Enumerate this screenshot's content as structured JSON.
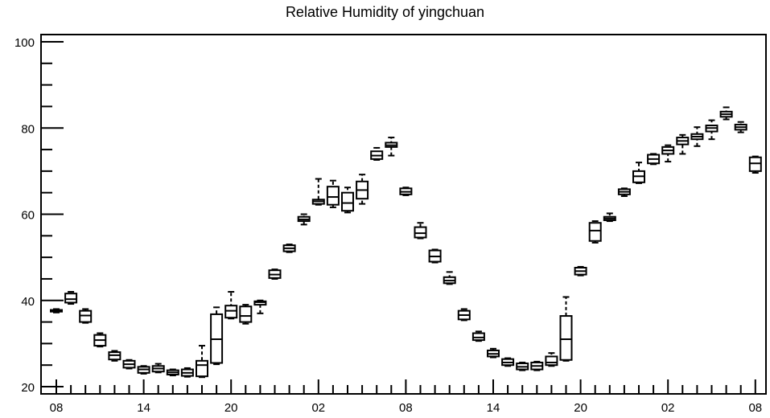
{
  "chart_data": {
    "type": "box",
    "title": "Relative Humidity of yingchuan",
    "xlabel": "",
    "ylabel": "",
    "ylim": [
      20,
      100
    ],
    "y_ticks": [
      20,
      40,
      60,
      80,
      100
    ],
    "x_tick_labels": [
      "08",
      "14",
      "20",
      "02",
      "08",
      "14",
      "20",
      "02",
      "08"
    ],
    "grid": false,
    "hours_per_box": 1,
    "boxes": [
      {
        "x": 1,
        "min": 37.2,
        "q1": 37.4,
        "median": 37.6,
        "q3": 37.8,
        "max": 38.0
      },
      {
        "x": 2,
        "min": 39.2,
        "q1": 39.5,
        "median": 40.3,
        "q3": 41.6,
        "max": 42.0
      },
      {
        "x": 3,
        "min": 34.8,
        "q1": 35.0,
        "median": 36.5,
        "q3": 37.6,
        "max": 38.0
      },
      {
        "x": 4,
        "min": 29.3,
        "q1": 29.5,
        "median": 30.8,
        "q3": 32.0,
        "max": 32.4
      },
      {
        "x": 5,
        "min": 26.0,
        "q1": 26.3,
        "median": 27.3,
        "q3": 28.0,
        "max": 28.3
      },
      {
        "x": 6,
        "min": 24.2,
        "q1": 24.4,
        "median": 25.2,
        "q3": 26.0,
        "max": 26.2
      },
      {
        "x": 7,
        "min": 23.0,
        "q1": 23.2,
        "median": 24.0,
        "q3": 24.6,
        "max": 24.8
      },
      {
        "x": 8,
        "min": 23.3,
        "q1": 23.5,
        "median": 24.2,
        "q3": 24.8,
        "max": 25.3
      },
      {
        "x": 9,
        "min": 22.6,
        "q1": 22.8,
        "median": 23.3,
        "q3": 23.8,
        "max": 24.0
      },
      {
        "x": 10,
        "min": 22.3,
        "q1": 22.5,
        "median": 23.2,
        "q3": 24.0,
        "max": 24.3
      },
      {
        "x": 11,
        "min": 22.2,
        "q1": 22.4,
        "median": 25.0,
        "q3": 26.0,
        "max": 29.5
      },
      {
        "x": 12,
        "min": 25.2,
        "q1": 25.5,
        "median": 31.0,
        "q3": 36.8,
        "max": 38.4
      },
      {
        "x": 13,
        "min": 35.8,
        "q1": 36.0,
        "median": 37.6,
        "q3": 38.8,
        "max": 42.0
      },
      {
        "x": 14,
        "min": 34.6,
        "q1": 35.0,
        "median": 36.4,
        "q3": 38.6,
        "max": 39.0
      },
      {
        "x": 15,
        "min": 37.0,
        "q1": 39.0,
        "median": 39.6,
        "q3": 39.8,
        "max": 40.0
      },
      {
        "x": 16,
        "min": 45.0,
        "q1": 45.2,
        "median": 46.0,
        "q3": 47.0,
        "max": 47.2
      },
      {
        "x": 17,
        "min": 51.2,
        "q1": 51.4,
        "median": 52.1,
        "q3": 52.8,
        "max": 53.0
      },
      {
        "x": 18,
        "min": 57.6,
        "q1": 58.4,
        "median": 58.8,
        "q3": 59.4,
        "max": 60.0
      },
      {
        "x": 19,
        "min": 62.2,
        "q1": 62.4,
        "median": 63.0,
        "q3": 63.4,
        "max": 68.2
      },
      {
        "x": 20,
        "min": 61.6,
        "q1": 62.2,
        "median": 64.0,
        "q3": 66.4,
        "max": 67.8
      },
      {
        "x": 21,
        "min": 60.4,
        "q1": 60.8,
        "median": 62.6,
        "q3": 65.0,
        "max": 66.2
      },
      {
        "x": 22,
        "min": 62.4,
        "q1": 63.6,
        "median": 65.6,
        "q3": 67.6,
        "max": 69.2
      },
      {
        "x": 23,
        "min": 72.6,
        "q1": 72.8,
        "median": 73.6,
        "q3": 74.6,
        "max": 75.4
      },
      {
        "x": 24,
        "min": 73.6,
        "q1": 75.6,
        "median": 76.0,
        "q3": 76.6,
        "max": 77.8
      },
      {
        "x": 25,
        "min": 64.4,
        "q1": 64.6,
        "median": 65.2,
        "q3": 66.0,
        "max": 66.2
      },
      {
        "x": 26,
        "min": 54.4,
        "q1": 54.6,
        "median": 55.6,
        "q3": 57.0,
        "max": 58.0
      },
      {
        "x": 27,
        "min": 48.8,
        "q1": 49.0,
        "median": 50.2,
        "q3": 51.6,
        "max": 51.8
      },
      {
        "x": 28,
        "min": 43.8,
        "q1": 44.0,
        "median": 44.6,
        "q3": 45.4,
        "max": 46.6
      },
      {
        "x": 29,
        "min": 35.4,
        "q1": 35.6,
        "median": 36.6,
        "q3": 37.6,
        "max": 38.0
      },
      {
        "x": 30,
        "min": 30.6,
        "q1": 30.8,
        "median": 31.4,
        "q3": 32.4,
        "max": 32.8
      },
      {
        "x": 31,
        "min": 26.8,
        "q1": 27.0,
        "median": 27.6,
        "q3": 28.4,
        "max": 28.8
      },
      {
        "x": 32,
        "min": 24.8,
        "q1": 25.0,
        "median": 25.6,
        "q3": 26.4,
        "max": 26.6
      },
      {
        "x": 33,
        "min": 23.8,
        "q1": 24.0,
        "median": 24.6,
        "q3": 25.4,
        "max": 25.6
      },
      {
        "x": 34,
        "min": 23.8,
        "q1": 24.0,
        "median": 24.8,
        "q3": 25.6,
        "max": 25.8
      },
      {
        "x": 35,
        "min": 24.8,
        "q1": 25.0,
        "median": 25.6,
        "q3": 27.0,
        "max": 27.8
      },
      {
        "x": 36,
        "min": 26.0,
        "q1": 26.2,
        "median": 31.0,
        "q3": 36.4,
        "max": 40.8
      },
      {
        "x": 37,
        "min": 45.8,
        "q1": 46.0,
        "median": 46.8,
        "q3": 47.6,
        "max": 47.8
      },
      {
        "x": 38,
        "min": 53.4,
        "q1": 53.8,
        "median": 56.2,
        "q3": 58.0,
        "max": 58.4
      },
      {
        "x": 39,
        "min": 58.4,
        "q1": 58.6,
        "median": 59.0,
        "q3": 59.4,
        "max": 60.2
      },
      {
        "x": 40,
        "min": 64.2,
        "q1": 64.6,
        "median": 65.2,
        "q3": 65.8,
        "max": 66.0
      },
      {
        "x": 41,
        "min": 67.2,
        "q1": 67.4,
        "median": 68.8,
        "q3": 70.0,
        "max": 72.0
      },
      {
        "x": 42,
        "min": 71.6,
        "q1": 71.8,
        "median": 72.8,
        "q3": 73.8,
        "max": 74.0
      },
      {
        "x": 43,
        "min": 72.2,
        "q1": 74.0,
        "median": 74.8,
        "q3": 75.6,
        "max": 76.0
      },
      {
        "x": 44,
        "min": 74.0,
        "q1": 76.2,
        "median": 77.0,
        "q3": 77.8,
        "max": 78.4
      },
      {
        "x": 45,
        "min": 75.8,
        "q1": 77.4,
        "median": 78.0,
        "q3": 78.6,
        "max": 80.2
      },
      {
        "x": 46,
        "min": 77.4,
        "q1": 79.2,
        "median": 80.0,
        "q3": 80.6,
        "max": 81.8
      },
      {
        "x": 47,
        "min": 82.0,
        "q1": 82.6,
        "median": 83.2,
        "q3": 83.8,
        "max": 84.8
      },
      {
        "x": 48,
        "min": 79.0,
        "q1": 79.6,
        "median": 80.2,
        "q3": 80.8,
        "max": 81.4
      },
      {
        "x": 49,
        "min": 69.6,
        "q1": 70.0,
        "median": 71.8,
        "q3": 73.2,
        "max": 73.4
      }
    ]
  }
}
